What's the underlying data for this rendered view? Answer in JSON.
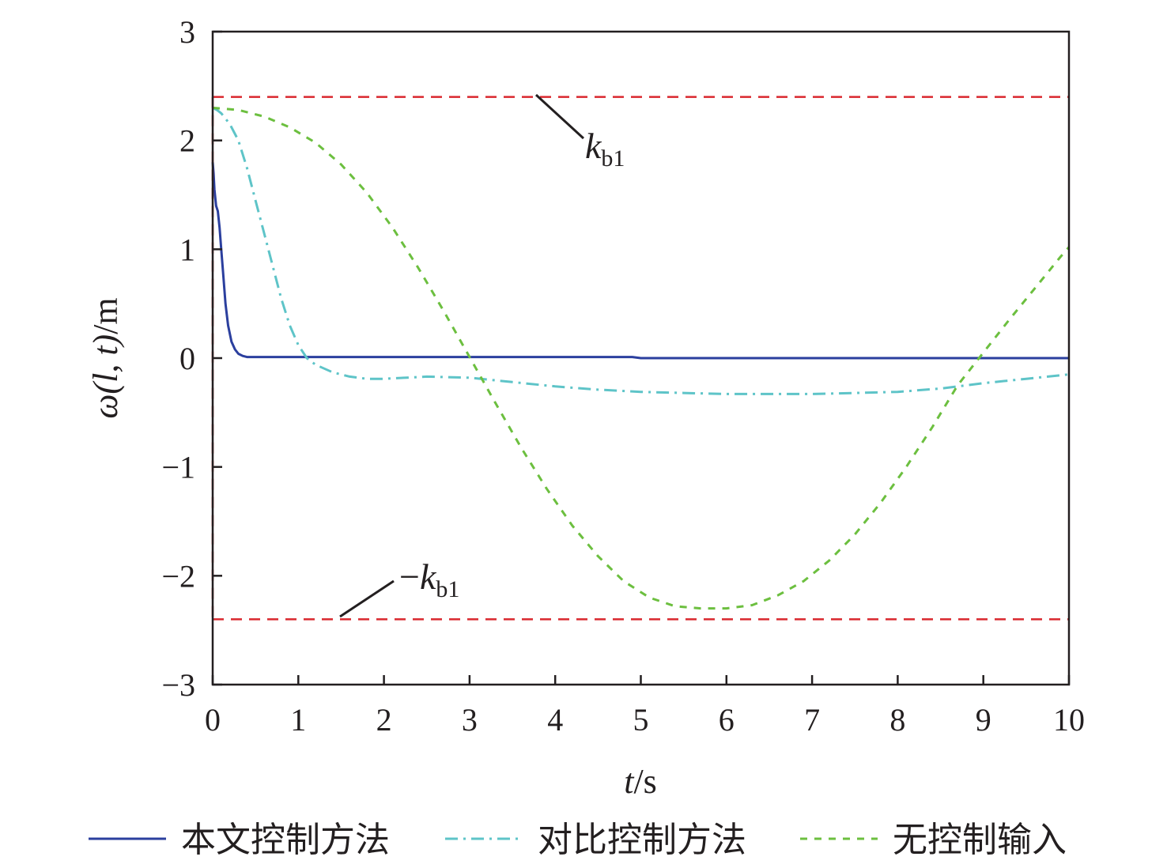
{
  "chart_data": {
    "type": "line",
    "xlabel": {
      "var": "t",
      "unit": "/s"
    },
    "ylabel": {
      "var": "ω",
      "args": "(l, t)",
      "unit": "/m"
    },
    "xlim": [
      0,
      10
    ],
    "ylim": [
      -3,
      3
    ],
    "xticks": [
      0,
      1,
      2,
      3,
      4,
      5,
      6,
      7,
      8,
      9,
      10
    ],
    "yticks": [
      -3,
      -2,
      -1,
      0,
      1,
      2,
      3
    ],
    "grid": false,
    "legend_position": "bottom",
    "series": [
      {
        "name": "本文控制方法",
        "color": "#2b3f9e",
        "dash": "solid",
        "x": [
          0,
          0.01,
          0.02,
          0.04,
          0.06,
          0.08,
          0.1,
          0.12,
          0.15,
          0.18,
          0.22,
          0.26,
          0.3,
          0.35,
          0.4,
          0.5,
          1,
          2,
          3,
          4,
          4.9,
          5,
          6,
          7,
          8,
          9,
          10
        ],
        "y": [
          1.8,
          1.7,
          1.55,
          1.4,
          1.35,
          1.2,
          1.0,
          0.8,
          0.5,
          0.3,
          0.15,
          0.08,
          0.04,
          0.02,
          0.01,
          0.01,
          0.01,
          0.01,
          0.01,
          0.01,
          0.01,
          0,
          0,
          0,
          0,
          0,
          0
        ]
      },
      {
        "name": "对比控制方法",
        "color": "#5ec4c8",
        "dash": "dashdot",
        "x": [
          0,
          0.05,
          0.1,
          0.2,
          0.3,
          0.4,
          0.5,
          0.6,
          0.7,
          0.8,
          0.9,
          1.0,
          1.1,
          1.2,
          1.4,
          1.6,
          1.8,
          2.0,
          2.5,
          3.0,
          3.5,
          4.0,
          4.5,
          5.0,
          5.5,
          6.0,
          6.5,
          7.0,
          7.5,
          8.0,
          8.5,
          9.0,
          9.5,
          10.0
        ],
        "y": [
          2.3,
          2.28,
          2.25,
          2.15,
          2.0,
          1.75,
          1.45,
          1.15,
          0.85,
          0.55,
          0.3,
          0.12,
          0.0,
          -0.06,
          -0.13,
          -0.17,
          -0.19,
          -0.19,
          -0.17,
          -0.18,
          -0.22,
          -0.26,
          -0.29,
          -0.31,
          -0.32,
          -0.33,
          -0.33,
          -0.33,
          -0.32,
          -0.31,
          -0.28,
          -0.23,
          -0.19,
          -0.15
        ]
      },
      {
        "name": "无控制输入",
        "color": "#6cbf3f",
        "dash": "dashed",
        "x": [
          0,
          0.3,
          0.6,
          0.9,
          1.2,
          1.5,
          1.8,
          2.1,
          2.4,
          2.7,
          3.0,
          3.3,
          3.6,
          3.9,
          4.2,
          4.5,
          4.8,
          5.1,
          5.4,
          5.7,
          6.0,
          6.3,
          6.6,
          6.9,
          7.2,
          7.5,
          7.8,
          8.1,
          8.4,
          8.7,
          9.0,
          9.3,
          9.6,
          9.9,
          10.0
        ],
        "y": [
          2.3,
          2.28,
          2.22,
          2.12,
          1.98,
          1.78,
          1.52,
          1.2,
          0.83,
          0.43,
          0.01,
          -0.41,
          -0.82,
          -1.2,
          -1.54,
          -1.82,
          -2.05,
          -2.2,
          -2.28,
          -2.3,
          -2.3,
          -2.27,
          -2.18,
          -2.05,
          -1.86,
          -1.62,
          -1.33,
          -1.0,
          -0.64,
          -0.25,
          0.05,
          0.35,
          0.64,
          0.93,
          1.02
        ]
      },
      {
        "name": "",
        "color": "#d9272e",
        "dash": "redline",
        "role": "upper-bound",
        "value": 2.4
      },
      {
        "name": "",
        "color": "#d9272e",
        "dash": "redline",
        "role": "lower-bound",
        "value": -2.4
      }
    ],
    "annotations": [
      {
        "id": "upper",
        "label_sign": "",
        "label_var": "k",
        "label_sub": "b1"
      },
      {
        "id": "lower",
        "label_sign": "−",
        "label_var": "k",
        "label_sub": "b1"
      }
    ]
  }
}
